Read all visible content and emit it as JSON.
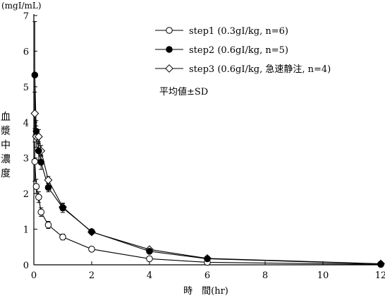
{
  "chart_data": {
    "type": "line",
    "title": "",
    "unit_label": "(mgI/mL)",
    "xlabel": "時　間(hr)",
    "ylabel": "血漿中濃度",
    "xlim": [
      0,
      12
    ],
    "ylim": [
      0,
      7
    ],
    "x_ticks": [
      0,
      2,
      4,
      6,
      8,
      10,
      12
    ],
    "y_ticks": [
      0,
      1,
      2,
      3,
      4,
      5,
      6,
      7
    ],
    "grid": false,
    "legend_position": "top-right",
    "note": "平均値±SD",
    "series": [
      {
        "name": "step1 (0.3gI/kg, n=6)",
        "marker": "open-circle",
        "x": [
          0.033,
          0.083,
          0.167,
          0.25,
          0.5,
          1,
          2,
          4,
          6,
          12
        ],
        "y": [
          2.9,
          2.2,
          1.9,
          1.48,
          1.12,
          0.78,
          0.44,
          0.17,
          0.07,
          0.01
        ],
        "err": [
          0.55,
          0.2,
          0.15,
          0.12,
          0.1,
          0.08,
          0.05,
          0.03,
          0.02,
          0.01
        ]
      },
      {
        "name": "step2 (0.6gI/kg, n=5)",
        "marker": "filled-circle",
        "x": [
          0.033,
          0.083,
          0.167,
          0.25,
          0.5,
          1,
          2,
          4,
          6,
          12
        ],
        "y": [
          5.33,
          3.75,
          3.2,
          2.88,
          2.17,
          1.6,
          0.93,
          0.38,
          0.17,
          0.02
        ],
        "err": [
          1.5,
          0.3,
          0.25,
          0.2,
          0.12,
          0.13,
          0.06,
          0.05,
          0.03,
          0.01
        ]
      },
      {
        "name": "step3 (0.6gI/kg, 急速静注, n=4)",
        "marker": "open-diamond",
        "x": [
          0.033,
          0.083,
          0.167,
          0.25,
          0.5,
          1,
          2,
          4,
          6,
          12
        ],
        "y": [
          4.25,
          3.6,
          3.6,
          3.2,
          2.38,
          1.62,
          0.92,
          0.43,
          0.18,
          0.03
        ],
        "err": [
          0.6,
          0.3,
          0.2,
          0.15,
          0.1,
          0.1,
          0.05,
          0.04,
          0.03,
          0.01
        ]
      }
    ]
  }
}
